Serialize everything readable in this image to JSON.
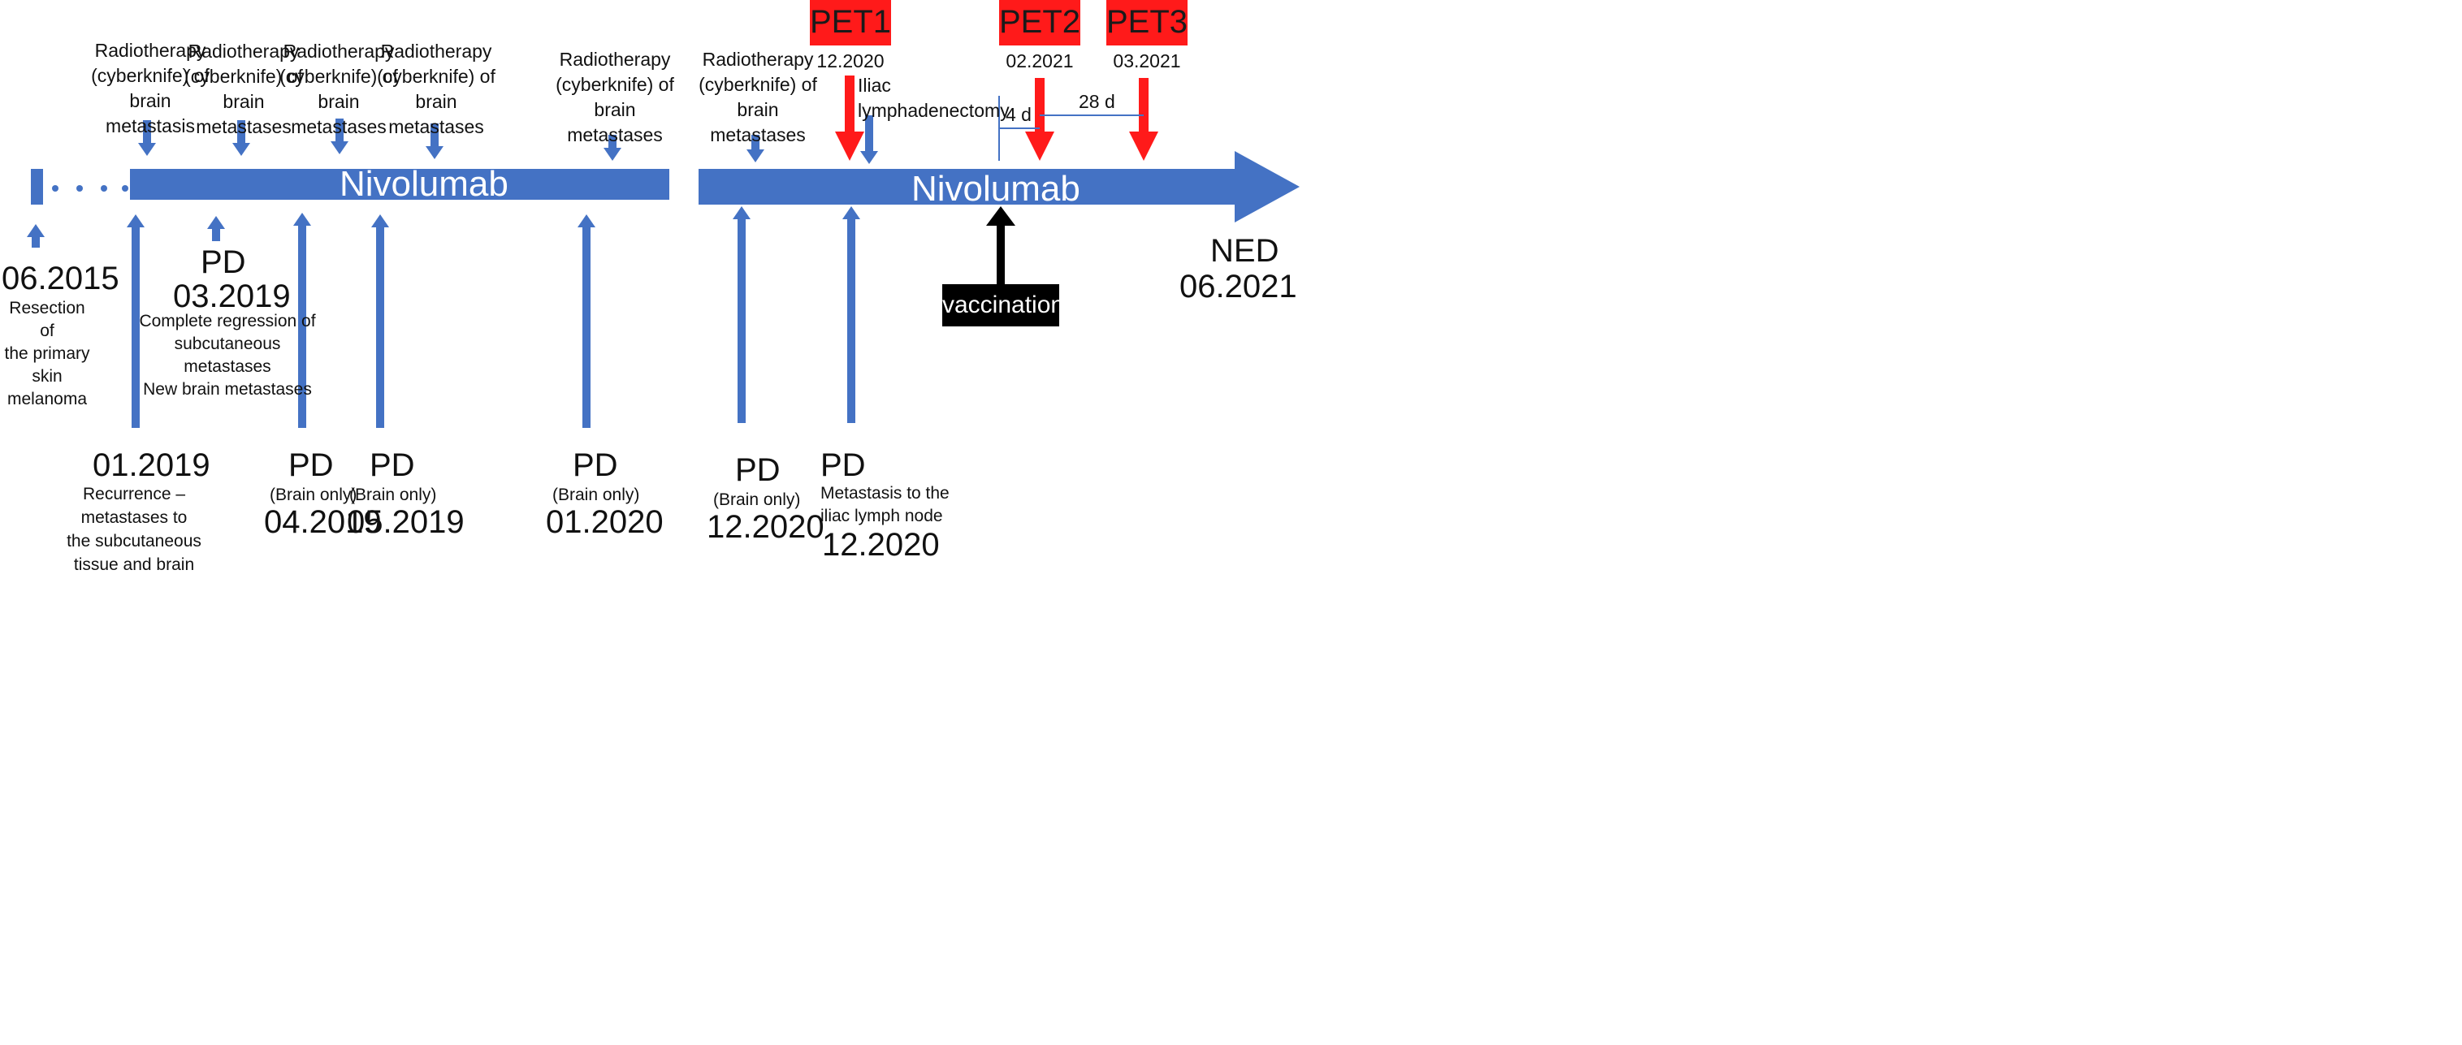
{
  "timeline": {
    "nivolumab_1": "Nivolumab",
    "nivolumab_2": "Nivolumab"
  },
  "events_top": {
    "rt1": [
      "Radiotherapy",
      "(cyberknife) of",
      "brain",
      "metastasis"
    ],
    "rt2": [
      "Radiotherapy",
      "(cyberknife) of",
      "brain",
      "metastases"
    ],
    "rt3": [
      "Radiotherapy",
      "(cyberknife) of",
      "brain",
      "metastases"
    ],
    "rt4": [
      "Radiotherapy",
      "(cyberknife) of",
      "brain",
      "metastases"
    ],
    "rt5": [
      "Radiotherapy",
      "(cyberknife) of",
      "brain",
      "metastases"
    ],
    "rt6": [
      "Radiotherapy",
      "(cyberknife) of",
      "brain",
      "metastases"
    ],
    "iliac": [
      "Iliac",
      "lymphadenectomy"
    ]
  },
  "pet": {
    "pet1": {
      "label": "PET1",
      "date": "12.2020"
    },
    "pet2": {
      "label": "PET2",
      "date": "02.2021"
    },
    "pet3": {
      "label": "PET3",
      "date": "03.2021"
    }
  },
  "intervals": {
    "short": "4 d",
    "long": "28 d"
  },
  "events_bottom": {
    "start": {
      "date": "06.2015",
      "desc": [
        "Resection of",
        "the primary",
        "skin melanoma"
      ]
    },
    "pd_0319": {
      "status": "PD",
      "date": "03.2019",
      "desc": [
        "Complete regression of",
        "subcutaneous metastases",
        "New brain metastases"
      ]
    },
    "rec_0119": {
      "date": "01.2019",
      "desc": [
        "Recurrence –",
        "metastases to",
        "the subcutaneous",
        "tissue and brain"
      ]
    },
    "pd_0419": {
      "status": "PD",
      "note": "(Brain only)",
      "date": "04.2019"
    },
    "pd_0519": {
      "status": "PD",
      "note": "(Brain only)",
      "date": "05.2019"
    },
    "pd_0120": {
      "status": "PD",
      "note": "(Brain only)",
      "date": "01.2020"
    },
    "pd_1220a": {
      "status": "PD",
      "note": "(Brain only)",
      "date": "12.2020"
    },
    "pd_1220b": {
      "status": "PD",
      "desc": [
        "Metastasis to the",
        "iliac lymph node"
      ],
      "date": "12.2020"
    }
  },
  "vaccination": "vaccination",
  "end": {
    "status": "NED",
    "date": "06.2021"
  },
  "colors": {
    "blue": "#4472c4",
    "red": "#ff1a1a",
    "black": "#000000"
  }
}
